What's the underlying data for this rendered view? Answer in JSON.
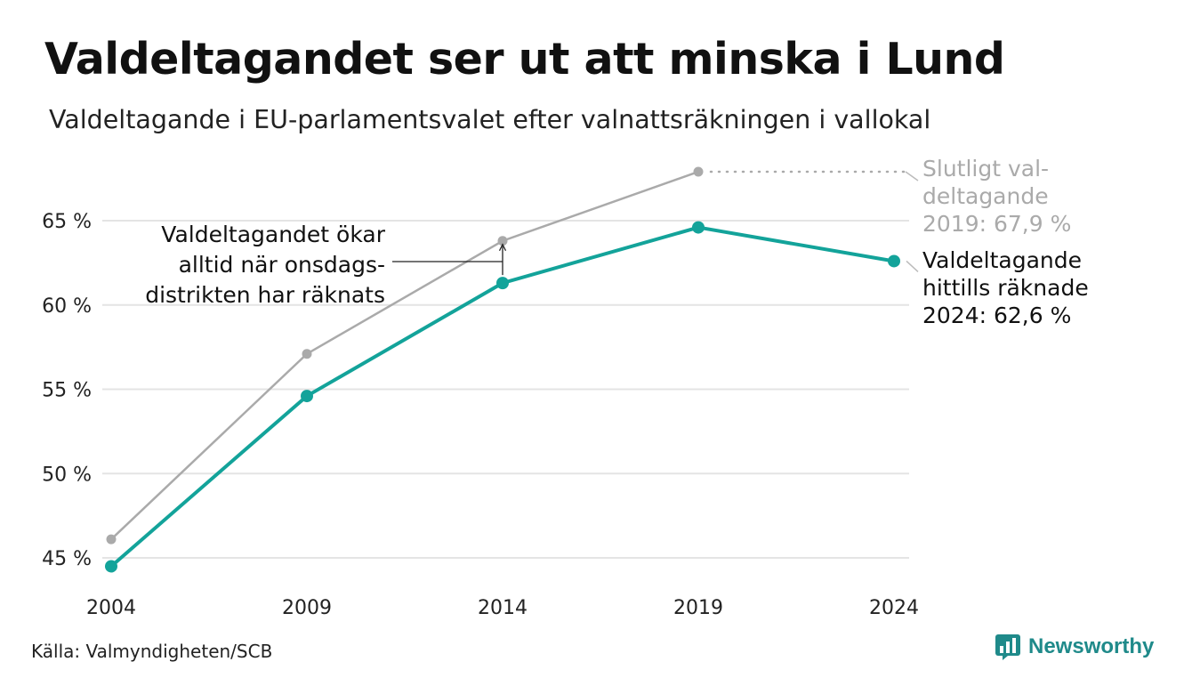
{
  "title": "Valdeltagandet ser ut att minska i Lund",
  "subtitle": "Valdeltagande i EU-parlamentsvalet efter valnattsräkningen i vallokal",
  "source": "Källa: Valmyndigheten/SCB",
  "brand": "Newsworthy",
  "colors": {
    "final": "#aaaaaa",
    "count": "#13a39a",
    "grid": "#e4e4e4",
    "text": "#222222"
  },
  "chart_data": {
    "type": "line",
    "x": [
      2004,
      2009,
      2014,
      2019,
      2024
    ],
    "x_tick_labels": [
      "2004",
      "2009",
      "2014",
      "2019",
      "2024"
    ],
    "y_ticks": [
      45,
      50,
      55,
      60,
      65
    ],
    "y_tick_labels": [
      "45 %",
      "50 %",
      "55 %",
      "60 %",
      "65 %"
    ],
    "ylim": [
      44.5,
      67.5
    ],
    "grid": true,
    "series": [
      {
        "key": "final",
        "values": [
          46.1,
          57.1,
          63.8,
          67.9,
          null
        ]
      },
      {
        "key": "count",
        "values": [
          44.5,
          54.6,
          61.3,
          64.6,
          62.6
        ]
      }
    ],
    "annotations": {
      "final_2019": [
        "Slutligt val-",
        "deltagande",
        "2019: 67,9 %"
      ],
      "count_2024": [
        "Valdeltagande",
        "hittills räknade",
        "2024: 62,6 %"
      ],
      "note": [
        "Valdeltagandet ökar",
        "alltid när onsdags-",
        "distrikten har räknats"
      ]
    }
  }
}
